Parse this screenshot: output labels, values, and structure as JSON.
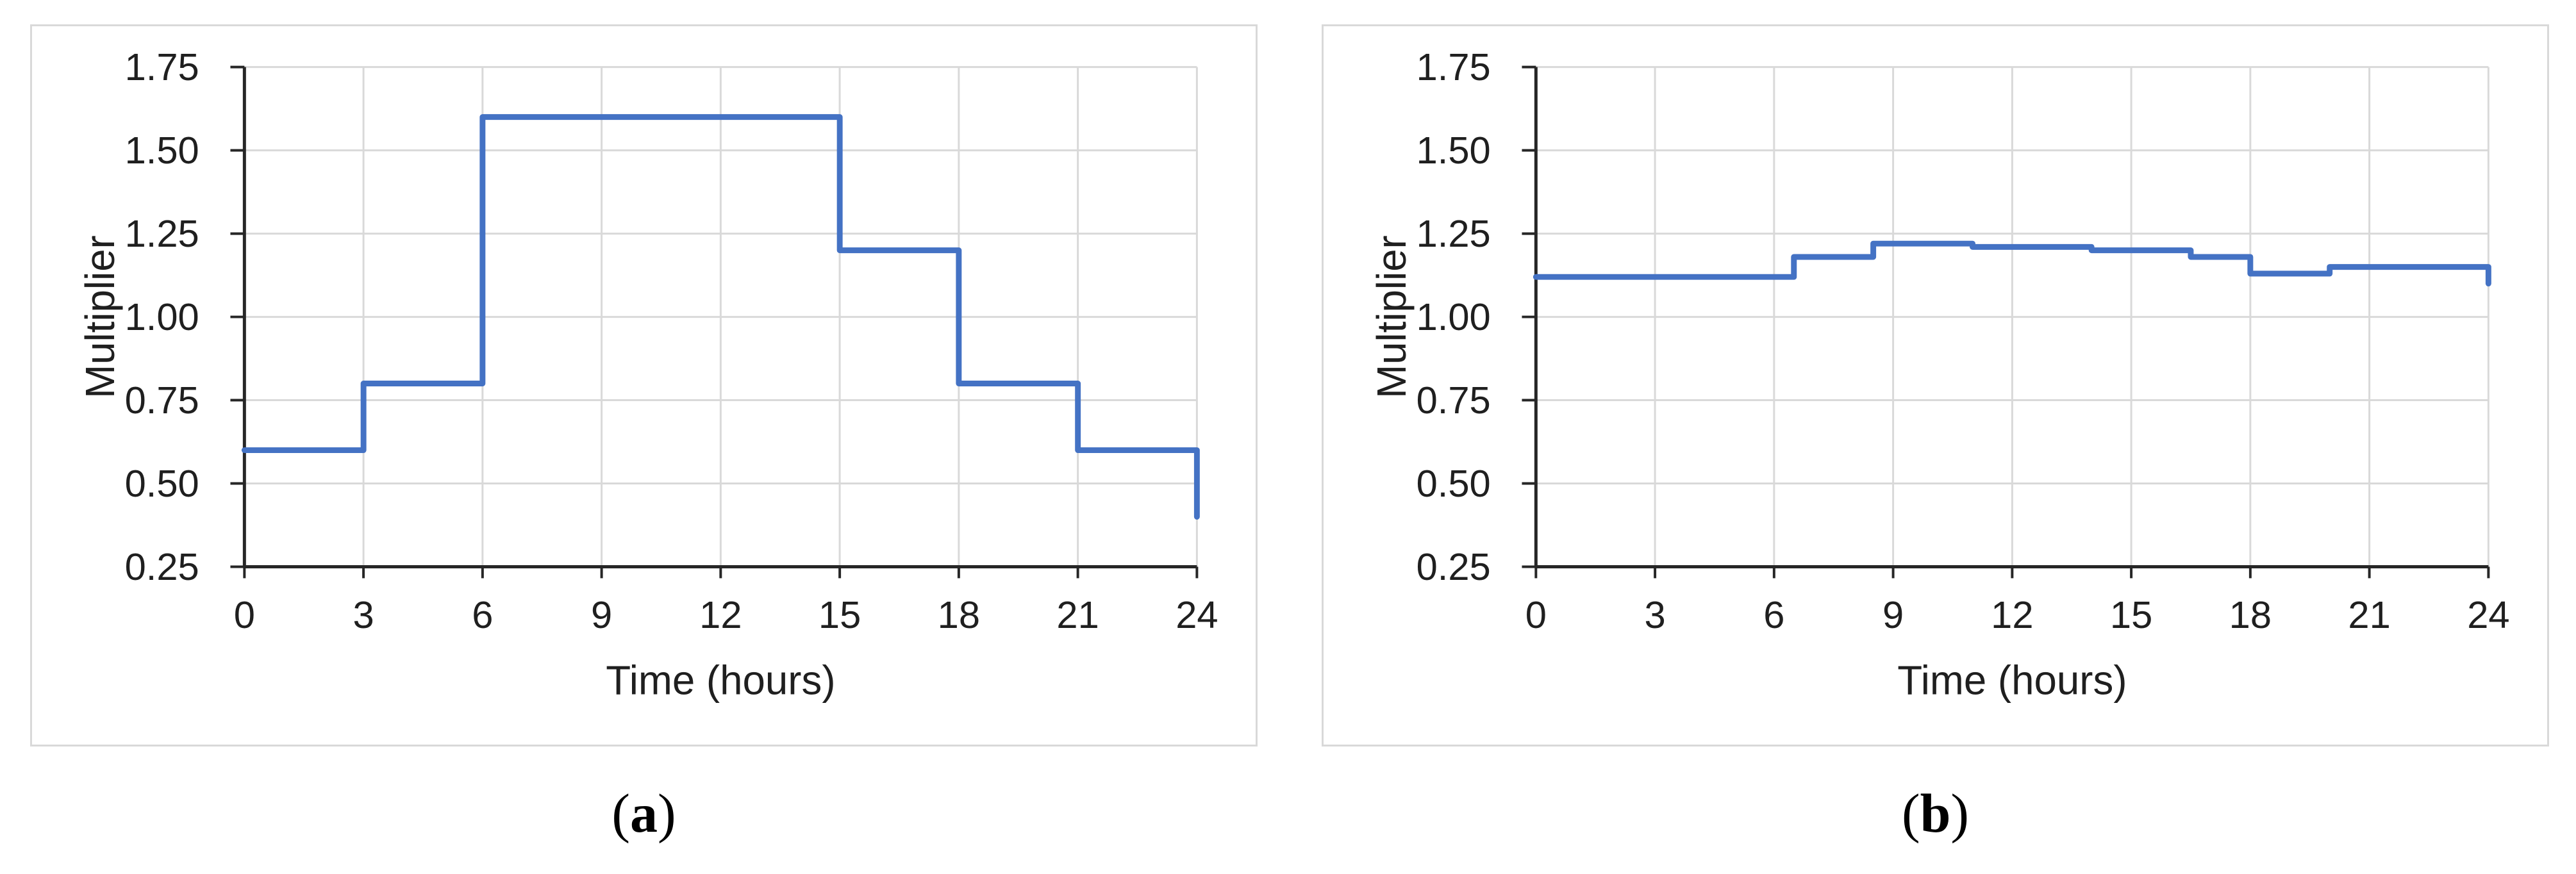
{
  "figure": {
    "panels": [
      {
        "id": "a",
        "caption": {
          "open": "(",
          "letter": "a",
          "close": ")"
        }
      },
      {
        "id": "b",
        "caption": {
          "open": "(",
          "letter": "b",
          "close": ")"
        }
      }
    ]
  },
  "colors": {
    "line": "#4472C4",
    "grid": "#D9D9D9",
    "axis": "#262626",
    "text": "#1F1F1F",
    "panel_border": "#D9D9D9"
  },
  "chart_data": [
    {
      "type": "line",
      "subtype": "step",
      "panel": "a",
      "title": "",
      "xlabel": "Time (hours)",
      "ylabel": "Multiplier",
      "xlim": [
        0,
        24
      ],
      "ylim": [
        0.25,
        1.75
      ],
      "xticks": [
        0,
        3,
        6,
        9,
        12,
        15,
        18,
        21,
        24
      ],
      "xtick_labels": [
        "0",
        "3",
        "6",
        "9",
        "12",
        "15",
        "18",
        "21",
        "24"
      ],
      "yticks": [
        0.25,
        0.5,
        0.75,
        1.0,
        1.25,
        1.5,
        1.75
      ],
      "ytick_labels": [
        "0.25",
        "0.50",
        "0.75",
        "1.00",
        "1.25",
        "1.50",
        "1.75"
      ],
      "grid": true,
      "legend": "none",
      "line_color": "#4472C4",
      "series": [
        {
          "name": "multiplier",
          "points": [
            [
              0,
              0.6
            ],
            [
              3,
              0.6
            ],
            [
              3,
              0.8
            ],
            [
              6,
              0.8
            ],
            [
              6,
              1.6
            ],
            [
              15,
              1.6
            ],
            [
              15,
              1.2
            ],
            [
              18,
              1.2
            ],
            [
              18,
              0.8
            ],
            [
              21,
              0.8
            ],
            [
              21,
              0.6
            ],
            [
              24,
              0.6
            ],
            [
              24,
              0.4
            ]
          ]
        }
      ]
    },
    {
      "type": "line",
      "subtype": "step",
      "panel": "b",
      "title": "",
      "xlabel": "Time (hours)",
      "ylabel": "Multiplier",
      "xlim": [
        0,
        24
      ],
      "ylim": [
        0.25,
        1.75
      ],
      "xticks": [
        0,
        3,
        6,
        9,
        12,
        15,
        18,
        21,
        24
      ],
      "xtick_labels": [
        "0",
        "3",
        "6",
        "9",
        "12",
        "15",
        "18",
        "21",
        "24"
      ],
      "yticks": [
        0.25,
        0.5,
        0.75,
        1.0,
        1.25,
        1.5,
        1.75
      ],
      "ytick_labels": [
        "0.25",
        "0.50",
        "0.75",
        "1.00",
        "1.25",
        "1.50",
        "1.75"
      ],
      "grid": true,
      "legend": "none",
      "line_color": "#4472C4",
      "series": [
        {
          "name": "multiplier",
          "points": [
            [
              0,
              1.12
            ],
            [
              6.5,
              1.12
            ],
            [
              6.5,
              1.18
            ],
            [
              8.5,
              1.18
            ],
            [
              8.5,
              1.22
            ],
            [
              11,
              1.22
            ],
            [
              11,
              1.21
            ],
            [
              14,
              1.21
            ],
            [
              14,
              1.2
            ],
            [
              16.5,
              1.2
            ],
            [
              16.5,
              1.18
            ],
            [
              18,
              1.18
            ],
            [
              18,
              1.13
            ],
            [
              20,
              1.13
            ],
            [
              20,
              1.15
            ],
            [
              24,
              1.15
            ],
            [
              24,
              1.1
            ]
          ]
        }
      ]
    }
  ]
}
